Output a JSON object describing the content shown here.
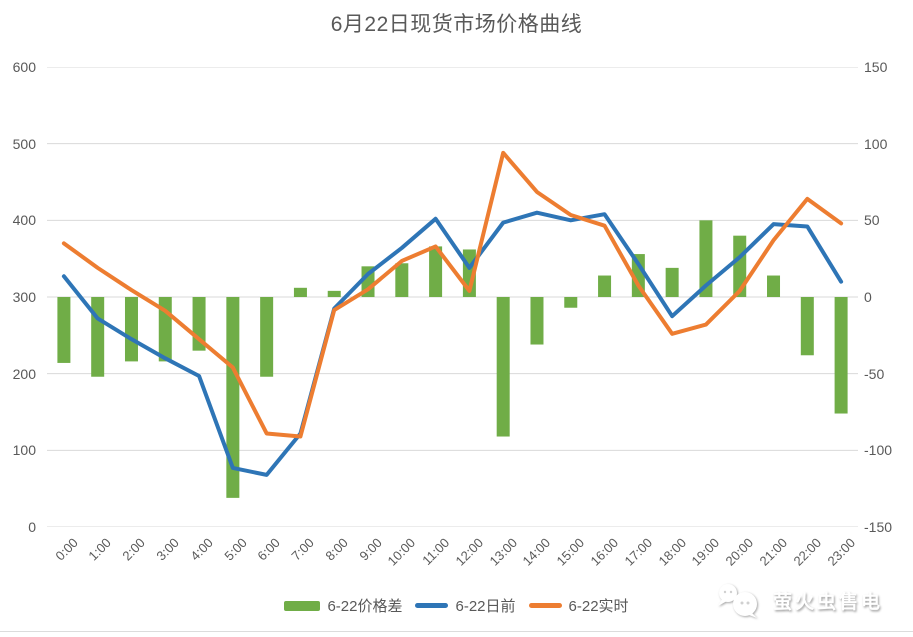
{
  "title": "6月22日现货市场价格曲线",
  "watermark": {
    "text": "萤火虫售电",
    "icon": "chat-bubbles-logo"
  },
  "colors": {
    "bar_green": "#70AD47",
    "line_blue": "#2E75B6",
    "line_orange": "#ED7D31",
    "gridline": "#D9D9D9",
    "axis_text": "#595959",
    "divider": "#DCDCDC",
    "background": "#FFFFFF"
  },
  "chart_data": {
    "type": "combo",
    "title": "6月22日现货市场价格曲线",
    "grid": true,
    "legend_position": "bottom",
    "x": [
      "0:00",
      "1:00",
      "2:00",
      "3:00",
      "4:00",
      "5:00",
      "6:00",
      "7:00",
      "8:00",
      "9:00",
      "10:00",
      "11:00",
      "12:00",
      "13:00",
      "14:00",
      "15:00",
      "16:00",
      "17:00",
      "18:00",
      "19:00",
      "20:00",
      "21:00",
      "22:00",
      "23:00"
    ],
    "left_axis": {
      "min": 0,
      "max": 600,
      "ticks": [
        "600",
        "500",
        "400",
        "300",
        "200",
        "100",
        "0"
      ]
    },
    "right_axis": {
      "min": -150,
      "max": 150,
      "ticks": [
        "150",
        "100",
        "50",
        "0",
        "-50",
        "-100",
        "-150"
      ]
    },
    "series": [
      {
        "id": "price-diff",
        "name": "6-22价格差",
        "type": "bar",
        "axis": "right",
        "color": "#70AD47",
        "values": [
          -43,
          -52,
          -42,
          -42,
          -35,
          -131,
          -52,
          6,
          4,
          20,
          22,
          33,
          31,
          -91,
          -31,
          -7,
          14,
          28,
          19,
          50,
          40,
          14,
          -38,
          -76
        ]
      },
      {
        "id": "day-ahead",
        "name": "6-22日前",
        "type": "line",
        "axis": "left",
        "color": "#2E75B6",
        "values": [
          327,
          272,
          245,
          220,
          197,
          77,
          68,
          122,
          285,
          330,
          364,
          402,
          338,
          397,
          410,
          400,
          408,
          343,
          275,
          315,
          352,
          395,
          392,
          320
        ]
      },
      {
        "id": "real-time",
        "name": "6-22实时",
        "type": "line",
        "axis": "left",
        "color": "#ED7D31",
        "values": [
          370,
          338,
          309,
          282,
          245,
          208,
          122,
          118,
          283,
          310,
          347,
          366,
          308,
          488,
          437,
          407,
          393,
          315,
          252,
          264,
          308,
          374,
          428,
          396
        ]
      }
    ]
  }
}
